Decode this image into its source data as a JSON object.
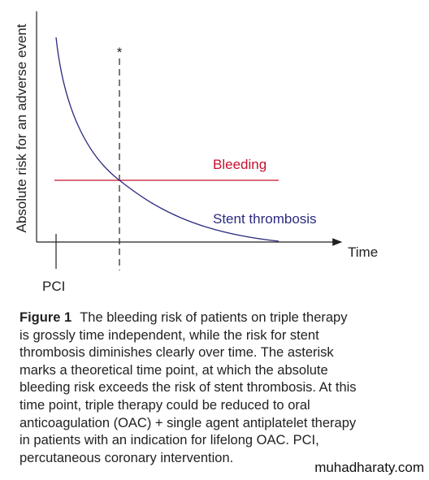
{
  "figure": {
    "y_axis_label": "Absolute risk for an adverse event",
    "x_axis_label": "Time",
    "x_tick_label": "PCI",
    "asterisk": "*",
    "bleeding_label": "Bleeding",
    "thrombosis_label": "Stent thrombosis"
  },
  "caption": {
    "label": "Figure 1",
    "lines": [
      "The bleeding risk of patients on triple therapy",
      "is grossly time independent, while the risk for stent",
      "thrombosis diminishes clearly over time. The asterisk",
      "marks a theoretical time point, at which the absolute",
      "bleeding risk exceeds the risk of stent thrombosis. At this",
      "time point, triple therapy could be reduced to oral",
      "anticoagulation (OAC) + single agent antiplatelet therapy",
      "in patients with an indication for lifelong OAC. PCI,",
      "percutaneous coronary intervention."
    ]
  },
  "watermark": "muhadharaty.com"
}
